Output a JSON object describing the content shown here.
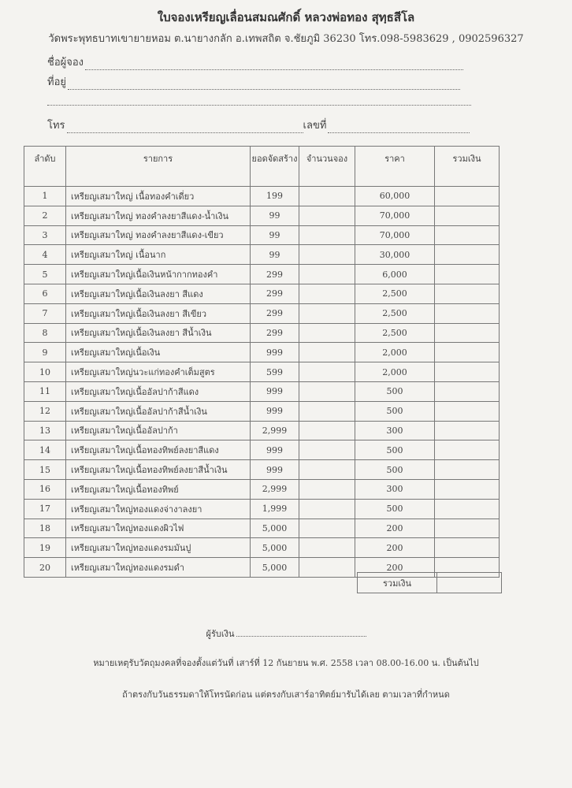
{
  "header": {
    "title": "ใบจองเหรียญเลื่อนสมณศักดิ์ หลวงพ่อทอง สุทฺธสีโล",
    "subtitle": "วัดพระพุทธบาทเขายายหอม ต.นายางกลัก อ.เทพสถิต จ.ชัยภูมิ 36230  โทร.098-5983629 , 0902596327"
  },
  "form": {
    "name_label": "ชื่อผู้จอง",
    "address_label": "ที่อยู่",
    "phone_label": "โทร",
    "number_label": "เลขที่"
  },
  "table": {
    "headers": [
      "ลำดับ",
      "รายการ",
      "ยอดจัดสร้าง",
      "จำนวนจอง",
      "ราคา",
      "รวมเงิน"
    ],
    "rows": [
      [
        "1",
        "เหรียญเสมาใหญ่ เนื้อทองคำเดี่ยว",
        "199",
        "",
        "60,000",
        ""
      ],
      [
        "2",
        "เหรียญเสมาใหญ่ ทองคำลงยาสีแดง-น้ำเงิน",
        "99",
        "",
        "70,000",
        ""
      ],
      [
        "3",
        "เหรียญเสมาใหญ่ ทองคำลงยาสีแดง-เขียว",
        "99",
        "",
        "70,000",
        ""
      ],
      [
        "4",
        "เหรียญเสมาใหญ่ เนื้อนาก",
        "99",
        "",
        "30,000",
        ""
      ],
      [
        "5",
        "เหรียญเสมาใหญ่เนื้อเงินหน้ากากทองคำ",
        "299",
        "",
        "6,000",
        ""
      ],
      [
        "6",
        "เหรียญเสมาใหญ่เนื้อเงินลงยา สีแดง",
        "299",
        "",
        "2,500",
        ""
      ],
      [
        "7",
        "เหรียญเสมาใหญ่เนื้อเงินลงยา สีเขียว",
        "299",
        "",
        "2,500",
        ""
      ],
      [
        "8",
        "เหรียญเสมาใหญ่เนื้อเงินลงยา สีน้ำเงิน",
        "299",
        "",
        "2,500",
        ""
      ],
      [
        "9",
        "เหรียญเสมาใหญ่เนื้อเงิน",
        "999",
        "",
        "2,000",
        ""
      ],
      [
        "10",
        "เหรียญเสมาใหญ่นวะแก่ทองคำเต็มสูตร",
        "599",
        "",
        "2,000",
        ""
      ],
      [
        "11",
        "เหรียญเสมาใหญ่เนื้ออัลปาก้าสีแดง",
        "999",
        "",
        "500",
        ""
      ],
      [
        "12",
        "เหรียญเสมาใหญ่เนื้ออัลปาก้าสีน้ำเงิน",
        "999",
        "",
        "500",
        ""
      ],
      [
        "13",
        "เหรียญเสมาใหญ่เนื้ออัลปาก้า",
        "2,999",
        "",
        "300",
        ""
      ],
      [
        "14",
        "เหรียญเสมาใหญ่เนื้อทองทิพย์ลงยาสีแดง",
        "999",
        "",
        "500",
        ""
      ],
      [
        "15",
        "เหรียญเสมาใหญ่เนื้อทองทิพย์ลงยาสีน้ำเงิน",
        "999",
        "",
        "500",
        ""
      ],
      [
        "16",
        "เหรียญเสมาใหญ่เนื้อทองทิพย์",
        "2,999",
        "",
        "300",
        ""
      ],
      [
        "17",
        "เหรียญเสมาใหญ่ทองแดงจ่างาลงยา",
        "1,999",
        "",
        "500",
        ""
      ],
      [
        "18",
        "เหรียญเสมาใหญ่ทองแดงผิวไฟ",
        "5,000",
        "",
        "200",
        ""
      ],
      [
        "19",
        "เหรียญเสมาใหญ่ทองแดงรมมันปู",
        "5,000",
        "",
        "200",
        ""
      ],
      [
        "20",
        "เหรียญเสมาใหญ่ทองแดงรมดำ",
        "5,000",
        "",
        "200",
        ""
      ]
    ],
    "total_label": "รวมเงิน"
  },
  "footer": {
    "receiver_label": "ผู้รับเงิน",
    "note1": "หมายเหตุรับวัตถุมงคลที่จองตั้งแต่วันที่ เสาร์ที่ 12 กันยายน พ.ศ. 2558  เวลา 08.00-16.00 น. เป็นต้นไป",
    "note2": "ถ้าตรงกับวันธรรมดาให้โทรนัดก่อน แต่ตรงกับเสาร์อาทิตย์มารับได้เลย ตามเวลาที่กำหนด"
  }
}
